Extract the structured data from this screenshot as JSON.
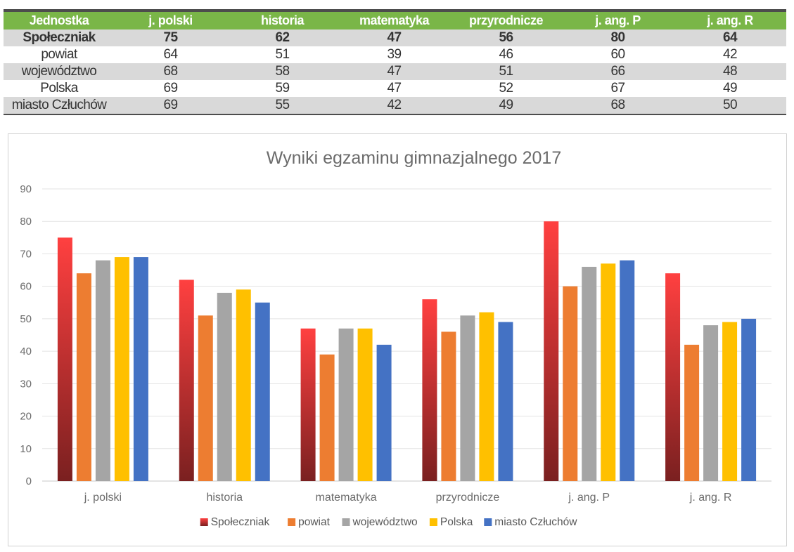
{
  "table": {
    "headers": [
      "Jednostka",
      "j. polski",
      "historia",
      "matematyka",
      "przyrodnicze",
      "j. ang. P",
      "j. ang. R"
    ],
    "rows": [
      [
        "Społeczniak",
        "75",
        "62",
        "47",
        "56",
        "80",
        "64"
      ],
      [
        "powiat",
        "64",
        "51",
        "39",
        "46",
        "60",
        "42"
      ],
      [
        "województwo",
        "68",
        "58",
        "47",
        "51",
        "66",
        "48"
      ],
      [
        "Polska",
        "69",
        "59",
        "47",
        "52",
        "67",
        "49"
      ],
      [
        "miasto Człuchów",
        "69",
        "55",
        "42",
        "49",
        "68",
        "50"
      ]
    ]
  },
  "colors": {
    "header_green": "#7ab648",
    "row_shade": "#d9d9d9",
    "border_dark": "#4d4d4d"
  },
  "chart_data": {
    "type": "bar",
    "title": "Wyniki egzaminu gimnazjalnego 2017",
    "categories": [
      "j. polski",
      "historia",
      "matematyka",
      "przyrodnicze",
      "j. ang. P",
      "j. ang. R"
    ],
    "series": [
      {
        "name": "Społeczniak",
        "values": [
          75,
          62,
          47,
          56,
          80,
          64
        ],
        "color": "#ff4040",
        "color_bottom": "#7a2020"
      },
      {
        "name": "powiat",
        "values": [
          64,
          51,
          39,
          46,
          60,
          42
        ],
        "color": "#ed7d31"
      },
      {
        "name": "województwo",
        "values": [
          68,
          58,
          47,
          51,
          66,
          48
        ],
        "color": "#a5a5a5"
      },
      {
        "name": "Polska",
        "values": [
          69,
          59,
          47,
          52,
          67,
          49
        ],
        "color": "#ffc000"
      },
      {
        "name": "miasto Człuchów",
        "values": [
          69,
          55,
          42,
          49,
          68,
          50
        ],
        "color": "#4472c4"
      }
    ],
    "ylim": [
      0,
      90
    ],
    "yticks": [
      "0",
      "10",
      "20",
      "30",
      "40",
      "50",
      "60",
      "70",
      "80",
      "90"
    ],
    "grid": true,
    "legend": "bottom"
  }
}
